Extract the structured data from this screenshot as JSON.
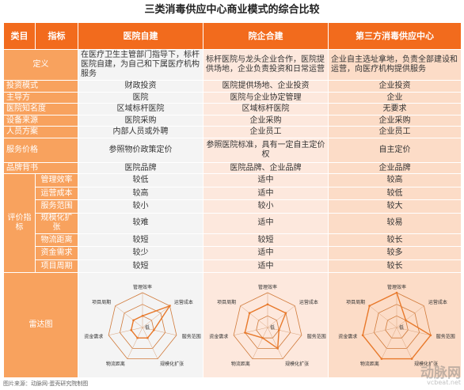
{
  "title": "三类消毒供应中心商业模式的综合比较",
  "header": {
    "category": "类目",
    "indicator": "指标",
    "col1": "医院自建",
    "col2": "院企合建",
    "col3": "第三方消毒供应中心"
  },
  "rows": [
    {
      "label": "定义",
      "c1": "在医疗卫生主管部门指导下，标杆医院自建，为自己和下属医疗机构服务",
      "c2": "标杆医院与龙头企业合作，医院提供场地，企业负责投资和日常运营",
      "c3": "企业自主选址拿地，负责全部建设和运营，向医疗机构提供服务"
    },
    {
      "label": "投资模式",
      "c1": "财政投资",
      "c2": "医院提供场地、企业投资",
      "c3": "企业投资"
    },
    {
      "label": "主导方",
      "c1": "医院",
      "c2": "医院与企业协定管理",
      "c3": "企业"
    },
    {
      "label": "医院知名度",
      "c1": "区域标杆医院",
      "c2": "区域标杆医院",
      "c3": "无要求"
    },
    {
      "label": "设备来源",
      "c1": "医院采购",
      "c2": "企业采购",
      "c3": "企业采购"
    },
    {
      "label": "人员方案",
      "c1": "内部人员或外聘",
      "c2": "企业员工",
      "c3": "企业员工"
    },
    {
      "label": "服务价格",
      "c1": "参照物价政策定价",
      "c2": "参照医院标准，具有一定自主定价权",
      "c3": "自主定价"
    },
    {
      "label": "品牌背书",
      "c1": "医院品牌",
      "c2": "医院品牌、企业品牌",
      "c3": "企业品牌"
    }
  ],
  "eval": {
    "group_label": "评价指标",
    "rows": [
      {
        "label": "管理效率",
        "c1": "较低",
        "c2": "适中",
        "c3": "较高"
      },
      {
        "label": "运营成本",
        "c1": "较高",
        "c2": "适中",
        "c3": "较低"
      },
      {
        "label": "服务范围",
        "c1": "较小",
        "c2": "较小",
        "c3": "较大"
      },
      {
        "label": "规模化扩张",
        "c1": "较难",
        "c2": "适中",
        "c3": "较易"
      },
      {
        "label": "物流距离",
        "c1": "较短",
        "c2": "较短",
        "c3": "较长"
      },
      {
        "label": "资金需求",
        "c1": "较少",
        "c2": "适中",
        "c3": "较多"
      },
      {
        "label": "项目周期",
        "c1": "较短",
        "c2": "适中",
        "c3": "较长"
      }
    ]
  },
  "radar": {
    "label": "雷达图",
    "axes": [
      "管理效率",
      "运营成本",
      "服务范围",
      "规模化扩张",
      "物流距离",
      "资金需求",
      "项目周期"
    ],
    "center_label": "低",
    "series": [
      {
        "values": [
          1,
          3,
          1,
          1,
          1,
          1,
          1
        ],
        "color": "#e8792b"
      },
      {
        "values": [
          2,
          2,
          1,
          2,
          1,
          2,
          2
        ],
        "color": "#e8792b"
      },
      {
        "values": [
          3,
          1,
          3,
          3,
          3,
          3,
          3
        ],
        "color": "#e8792b"
      }
    ],
    "levels": 3
  },
  "caption": "图片来源：动脉网·蛋壳研究院制图",
  "watermark": {
    "logo": "动脉网",
    "url": "vcbeat.net"
  }
}
